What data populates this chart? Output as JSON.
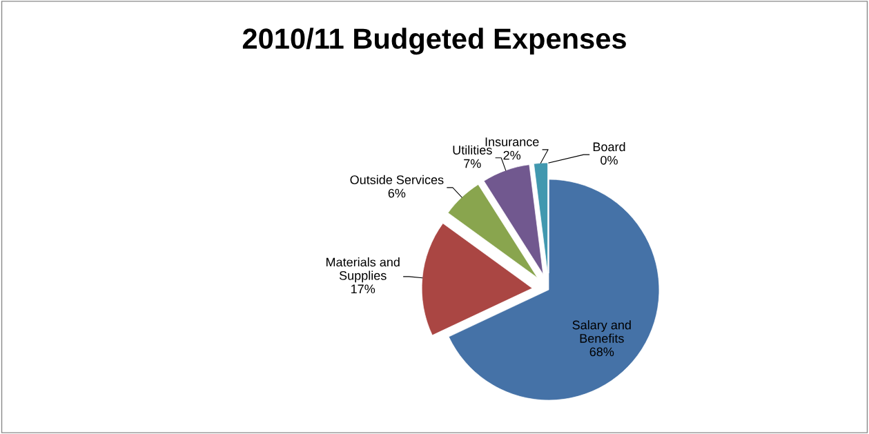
{
  "chart_data": {
    "type": "pie",
    "title": "2010/11 Budgeted Expenses",
    "categories": [
      "Salary and Benefits",
      "Materials and Supplies",
      "Outside Services",
      "Utilities",
      "Insurance",
      "Board"
    ],
    "values": [
      68,
      17,
      6,
      7,
      2,
      0
    ],
    "value_labels": [
      "68%",
      "17%",
      "6%",
      "7%",
      "2%",
      "0%"
    ],
    "colors": [
      "#4572a7",
      "#aa4643",
      "#89a54e",
      "#71588f",
      "#4198af",
      "#db843d"
    ]
  }
}
